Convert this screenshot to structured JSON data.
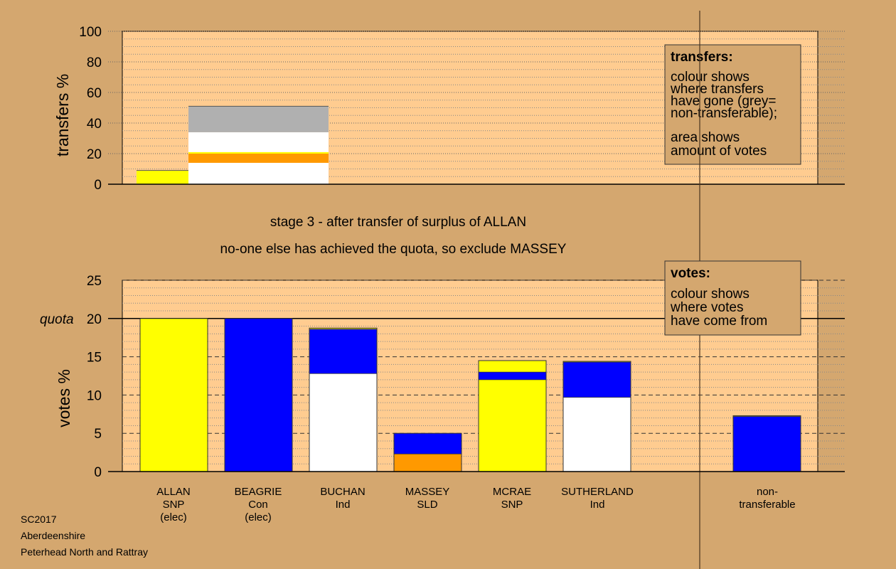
{
  "captions": {
    "stage": "stage 3 - after transfer of surplus of ALLAN",
    "note": "no-one else has achieved the quota, so exclude MASSEY"
  },
  "footer": [
    "SC2017",
    "Aberdeenshire",
    "Peterhead North and Rattray"
  ],
  "colors": {
    "background": "#d4a76f",
    "plot": "#ffcc90",
    "yellow": "#ffff00",
    "blue": "#0000ff",
    "orange": "#ff9900",
    "white": "#ffffff",
    "grey": "#b0b0b0"
  },
  "chart_data": [
    {
      "type": "bar",
      "ylabel": "transfers %",
      "ylim": [
        0,
        100
      ],
      "yticks": [
        0,
        20,
        40,
        60,
        80,
        100
      ],
      "legend": {
        "title": "transfers:",
        "lines": [
          "colour shows",
          "where transfers",
          "have gone (grey=",
          "non-transferable);"
        ],
        "lines2": [
          "area shows",
          "amount of votes"
        ]
      },
      "bars": [
        {
          "name": "transfer-origin",
          "segments": [
            {
              "color": "yellow",
              "from": 0,
              "to": 9
            }
          ]
        },
        {
          "name": "transfers-out",
          "segments": [
            {
              "color": "white",
              "from": 0,
              "to": 14
            },
            {
              "color": "orange",
              "from": 14,
              "to": 20
            },
            {
              "color": "yellow",
              "from": 20,
              "to": 21
            },
            {
              "color": "white",
              "from": 21,
              "to": 34
            },
            {
              "color": "grey",
              "from": 34,
              "to": 51
            }
          ]
        }
      ]
    },
    {
      "type": "bar",
      "ylabel": "votes %",
      "ylim": [
        0,
        25
      ],
      "yticks": [
        0,
        5,
        10,
        15,
        20,
        25
      ],
      "quota": 20,
      "quota_label": "quota",
      "legend": {
        "title": "votes:",
        "lines": [
          "colour shows",
          "where votes",
          "have come from"
        ]
      },
      "categories": [
        {
          "lines": [
            "ALLAN",
            "SNP",
            "(elec)"
          ],
          "segments": [
            {
              "color": "yellow",
              "value": 20
            }
          ]
        },
        {
          "lines": [
            "BEAGRIE",
            "Con",
            "(elec)"
          ],
          "segments": [
            {
              "color": "blue",
              "value": 20
            }
          ]
        },
        {
          "lines": [
            "BUCHAN",
            "Ind"
          ],
          "segments": [
            {
              "color": "white",
              "value": 12.8
            },
            {
              "color": "blue",
              "value": 5.8
            },
            {
              "color": "yellow",
              "value": 0.15
            }
          ]
        },
        {
          "lines": [
            "MASSEY",
            "SLD"
          ],
          "segments": [
            {
              "color": "orange",
              "value": 2.3
            },
            {
              "color": "blue",
              "value": 2.7
            }
          ]
        },
        {
          "lines": [
            "MCRAE",
            "SNP"
          ],
          "segments": [
            {
              "color": "yellow",
              "value": 12
            },
            {
              "color": "blue",
              "value": 1
            },
            {
              "color": "yellow",
              "value": 1.5
            }
          ]
        },
        {
          "lines": [
            "SUTHERLAND",
            "Ind"
          ],
          "segments": [
            {
              "color": "white",
              "value": 9.7
            },
            {
              "color": "blue",
              "value": 4.6
            },
            {
              "color": "yellow",
              "value": 0.1
            }
          ]
        },
        {
          "lines": [
            "non-",
            "transferable"
          ],
          "segments": [
            {
              "color": "blue",
              "value": 7.2
            },
            {
              "color": "yellow",
              "value": 0.1
            }
          ]
        }
      ]
    }
  ]
}
